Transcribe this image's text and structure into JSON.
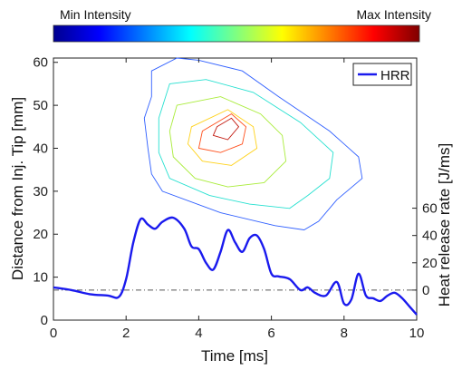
{
  "chart_data": {
    "type": "line",
    "colorbar": {
      "min_label": "Min Intensity",
      "max_label": "Max Intensity",
      "colors": [
        "#00008f",
        "#0000ff",
        "#0080ff",
        "#00ffff",
        "#80ff80",
        "#ffff00",
        "#ff8000",
        "#ff0000",
        "#800000"
      ]
    },
    "xlabel": "Time [ms]",
    "ylabel_left": "Distance from Inj. Tip [mm]",
    "ylabel_right": "Heat release rate [J/ms]",
    "xlim": [
      0,
      10
    ],
    "ylim_left": [
      0,
      61
    ],
    "ylim_right": [
      -22,
      170
    ],
    "x_ticks": [
      "0",
      "2",
      "4",
      "6",
      "8",
      "10"
    ],
    "y_left_ticks": [
      "0",
      "10",
      "20",
      "30",
      "40",
      "50",
      "60"
    ],
    "y_right_ticks": [
      "0",
      "20",
      "40",
      "60"
    ],
    "zero_line": {
      "y": 0,
      "style": "dash-dot",
      "color": "#555555"
    },
    "legend": {
      "position": "top-right",
      "entries": [
        "HRR"
      ]
    },
    "contours": [
      {
        "level": "low",
        "color": "#2f5fff",
        "points": [
          [
            2.7,
            58
          ],
          [
            3.4,
            61
          ],
          [
            4.0,
            60.5
          ],
          [
            5.2,
            58
          ],
          [
            6.2,
            52
          ],
          [
            7.6,
            44
          ],
          [
            8.4,
            38
          ],
          [
            8.5,
            33
          ],
          [
            7.8,
            28
          ],
          [
            7.3,
            23
          ],
          [
            6.9,
            21
          ],
          [
            6.1,
            22
          ],
          [
            4.6,
            25
          ],
          [
            3.0,
            30
          ],
          [
            2.7,
            34
          ],
          [
            2.6,
            40
          ],
          [
            2.5,
            47
          ],
          [
            2.7,
            52
          ]
        ]
      },
      {
        "level": "mid-low",
        "color": "#26e0d0",
        "points": [
          [
            3.2,
            55
          ],
          [
            4.2,
            56
          ],
          [
            5.5,
            53
          ],
          [
            6.8,
            46
          ],
          [
            7.7,
            39
          ],
          [
            7.6,
            33
          ],
          [
            7.0,
            29
          ],
          [
            6.5,
            26
          ],
          [
            5.4,
            27
          ],
          [
            4.3,
            29
          ],
          [
            3.2,
            33
          ],
          [
            2.9,
            39
          ],
          [
            2.9,
            47
          ]
        ]
      },
      {
        "level": "mid",
        "color": "#a9ec3a",
        "points": [
          [
            3.4,
            50
          ],
          [
            4.6,
            52
          ],
          [
            5.7,
            48
          ],
          [
            6.3,
            43
          ],
          [
            6.4,
            37
          ],
          [
            5.8,
            32
          ],
          [
            4.8,
            31
          ],
          [
            3.9,
            33
          ],
          [
            3.3,
            38
          ],
          [
            3.2,
            44
          ]
        ]
      },
      {
        "level": "mid-high",
        "color": "#ffd21a",
        "points": [
          [
            3.8,
            45
          ],
          [
            4.8,
            49
          ],
          [
            5.5,
            45
          ],
          [
            5.6,
            40
          ],
          [
            4.9,
            36
          ],
          [
            4.1,
            37
          ],
          [
            3.7,
            41
          ]
        ]
      },
      {
        "level": "high",
        "color": "#ff4e1a",
        "points": [
          [
            4.1,
            44
          ],
          [
            4.9,
            48
          ],
          [
            5.3,
            45
          ],
          [
            5.2,
            41
          ],
          [
            4.6,
            39
          ],
          [
            4.0,
            40
          ]
        ]
      },
      {
        "level": "peak",
        "color": "#c2190f",
        "points": [
          [
            4.5,
            45
          ],
          [
            4.9,
            47
          ],
          [
            5.1,
            45
          ],
          [
            4.8,
            42
          ],
          [
            4.4,
            43
          ]
        ]
      }
    ],
    "series": [
      {
        "name": "HRR",
        "color": "#1a1aee",
        "x": [
          0,
          0.5,
          1.0,
          1.5,
          1.8,
          2.0,
          2.2,
          2.4,
          2.6,
          2.8,
          3.0,
          3.3,
          3.6,
          3.8,
          4.0,
          4.2,
          4.4,
          4.6,
          4.8,
          5.0,
          5.2,
          5.4,
          5.6,
          5.8,
          6.0,
          6.2,
          6.5,
          6.8,
          7.0,
          7.2,
          7.5,
          7.8,
          8.0,
          8.2,
          8.4,
          8.6,
          8.8,
          9.0,
          9.2,
          9.4,
          9.6,
          9.8,
          10.0
        ],
        "values": [
          2,
          0,
          -3,
          -4,
          -5,
          8,
          35,
          52,
          48,
          45,
          50,
          53,
          45,
          32,
          30,
          20,
          15,
          28,
          44,
          35,
          28,
          38,
          40,
          30,
          12,
          10,
          8,
          0,
          2,
          -2,
          -4,
          6,
          -10,
          -7,
          12,
          -4,
          -6,
          -8,
          -4,
          -2,
          -6,
          -12,
          -18
        ]
      }
    ]
  }
}
